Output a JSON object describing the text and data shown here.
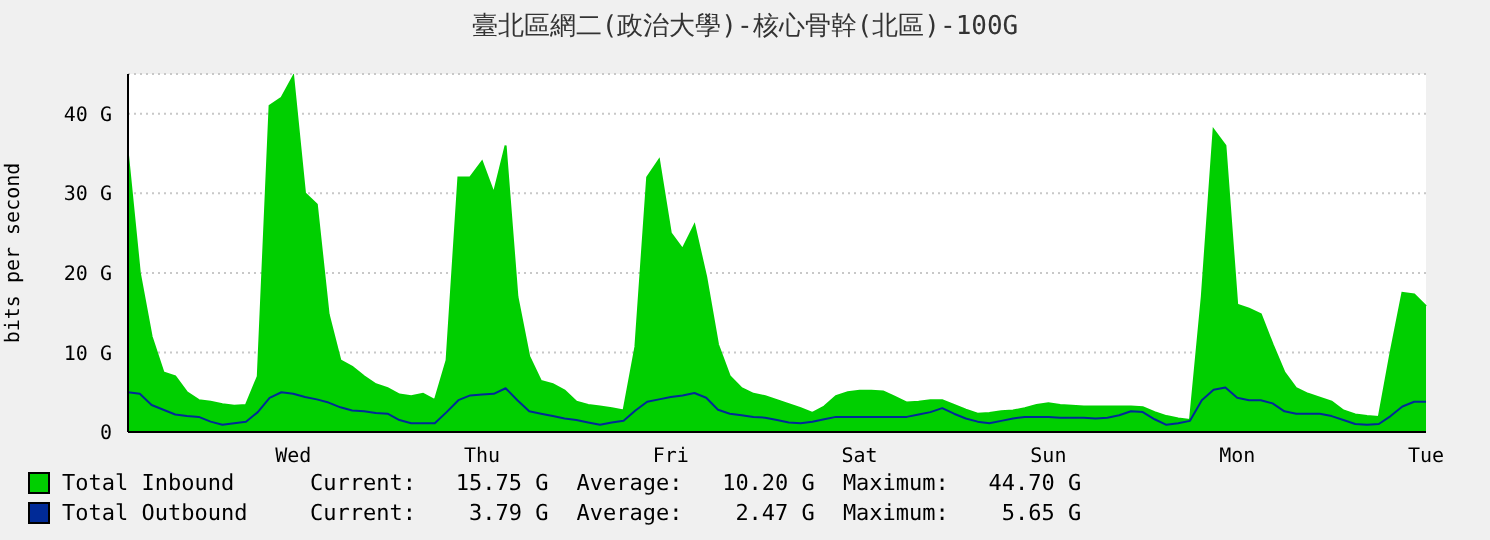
{
  "chart_data": {
    "type": "area",
    "title": "臺北區網二(政治大學)-核心骨幹(北區)-100G",
    "ylabel": "bits per second",
    "categories": [
      null,
      null,
      null,
      null,
      null,
      null,
      null,
      null,
      null,
      null,
      null,
      null,
      null,
      null,
      "Wed",
      null,
      null,
      null,
      null,
      null,
      null,
      null,
      null,
      null,
      null,
      null,
      null,
      null,
      null,
      null,
      "Thu",
      null,
      null,
      null,
      null,
      null,
      null,
      null,
      null,
      null,
      null,
      null,
      null,
      null,
      null,
      null,
      "Fri",
      null,
      null,
      null,
      null,
      null,
      null,
      null,
      null,
      null,
      null,
      null,
      null,
      null,
      null,
      null,
      "Sat",
      null,
      null,
      null,
      null,
      null,
      null,
      null,
      null,
      null,
      null,
      null,
      null,
      null,
      null,
      null,
      "Sun",
      null,
      null,
      null,
      null,
      null,
      null,
      null,
      null,
      null,
      null,
      null,
      null,
      null,
      null,
      null,
      "Mon",
      null,
      null,
      null,
      null,
      null,
      null,
      null,
      null,
      null,
      null,
      null,
      null,
      null,
      null,
      null,
      "Tue"
    ],
    "ylim": [
      0,
      45
    ],
    "yticks": [
      {
        "value": 0,
        "label": "0"
      },
      {
        "value": 10,
        "label": "10 G"
      },
      {
        "value": 20,
        "label": "20 G"
      },
      {
        "value": 30,
        "label": "30 G"
      },
      {
        "value": 40,
        "label": "40 G"
      }
    ],
    "grid": "y",
    "legend": "bottom left",
    "annotations": [
      "Current:   15.75 G",
      "Average:   10.20 G",
      "Maximum:   44.70 G",
      "Current:    3.79 G",
      "Average:    2.47 G",
      "Maximum:    5.65 G"
    ],
    "series": [
      {
        "name": "Total Inbound",
        "color": "#00cf00",
        "values": [
          34.8,
          20,
          12,
          7.5,
          7,
          5,
          4,
          3.8,
          3.5,
          3.3,
          3.4,
          7,
          41,
          42,
          44.7,
          30,
          28.6,
          14.8,
          9,
          8.2,
          7,
          6,
          5.5,
          4.7,
          4.5,
          4.8,
          4,
          9,
          32,
          32,
          34,
          30,
          36,
          17,
          9.5,
          6.4,
          6,
          5.2,
          3.8,
          3.4,
          3.2,
          3,
          2.7,
          10.7,
          32,
          34.2,
          25,
          23,
          26,
          19.5,
          11,
          7,
          5.5,
          4.8,
          4.5,
          4,
          3.5,
          3,
          2.4,
          3.2,
          4.5,
          5,
          5.2,
          5.2,
          5.1,
          4.4,
          3.7,
          3.8,
          4,
          4,
          3.4,
          2.8,
          2.3,
          2.4,
          2.6,
          2.7,
          3,
          3.4,
          3.6,
          3.4,
          3.3,
          3.2,
          3.2,
          3.2,
          3.2,
          3.2,
          3.1,
          2.5,
          2,
          1.7,
          1.5,
          17,
          38,
          36,
          16,
          15.5,
          14.8,
          11,
          7.5,
          5.5,
          4.8,
          4.3,
          3.8,
          2.7,
          2.2,
          2,
          1.9,
          10,
          17.5,
          17.3,
          15.8
        ]
      },
      {
        "name": "Total Outbound",
        "type": "line",
        "color": "#002a97",
        "values": [
          5,
          4.8,
          3.4,
          2.8,
          2.2,
          2,
          1.9,
          1.3,
          0.9,
          1.1,
          1.3,
          2.5,
          4.3,
          5,
          4.8,
          4.4,
          4.1,
          3.7,
          3.1,
          2.7,
          2.6,
          2.4,
          2.3,
          1.5,
          1.1,
          1.1,
          1.1,
          2.5,
          4,
          4.6,
          4.7,
          4.8,
          5.5,
          4,
          2.6,
          2.3,
          2,
          1.7,
          1.5,
          1.2,
          0.9,
          1.2,
          1.4,
          2.7,
          3.8,
          4.1,
          4.4,
          4.6,
          4.9,
          4.3,
          2.8,
          2.3,
          2.1,
          1.9,
          1.8,
          1.5,
          1.2,
          1.1,
          1.3,
          1.6,
          1.9,
          1.9,
          1.9,
          1.9,
          1.9,
          1.9,
          1.9,
          2.2,
          2.5,
          3,
          2.3,
          1.7,
          1.3,
          1.1,
          1.4,
          1.7,
          1.9,
          1.9,
          1.9,
          1.8,
          1.8,
          1.8,
          1.7,
          1.8,
          2.1,
          2.6,
          2.5,
          1.6,
          0.9,
          1.1,
          1.4,
          4,
          5.3,
          5.6,
          4.3,
          4,
          4,
          3.6,
          2.6,
          2.3,
          2.3,
          2.3,
          2,
          1.5,
          1,
          0.9,
          1,
          2,
          3.2,
          3.8,
          3.8
        ]
      }
    ]
  }
}
